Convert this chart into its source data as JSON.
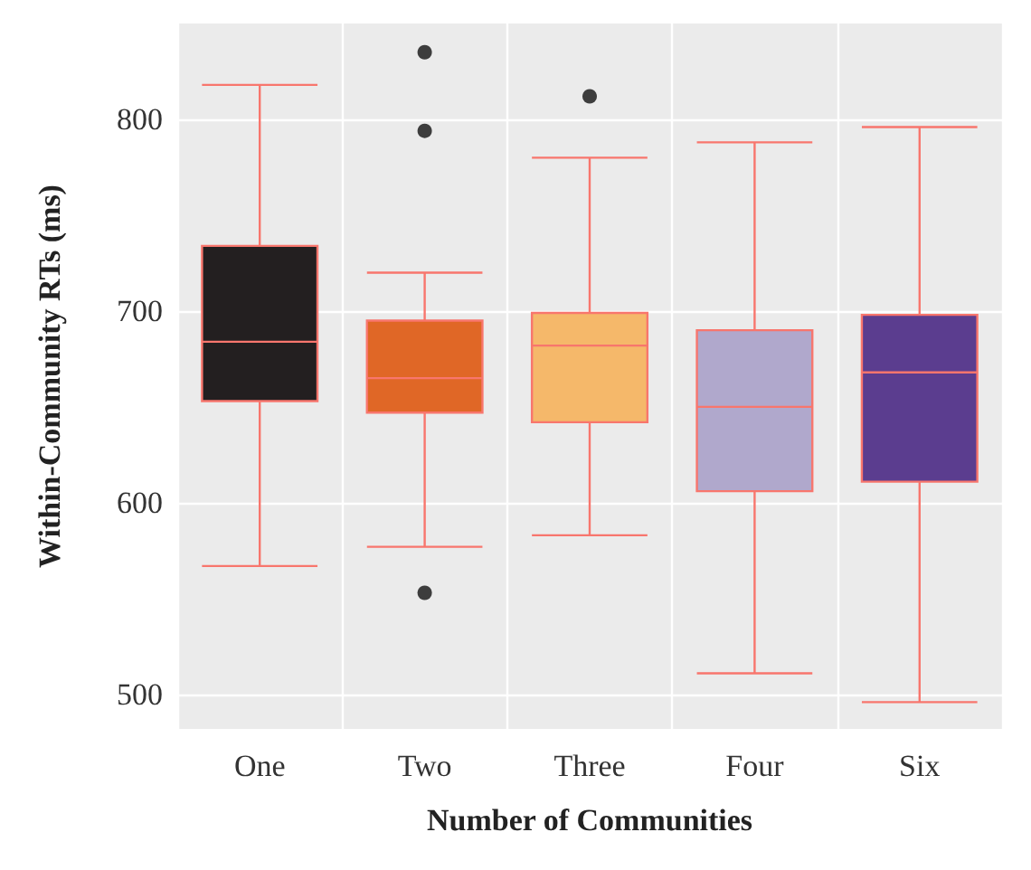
{
  "chart_data": {
    "type": "box",
    "xlabel": "Number of Communities",
    "ylabel": "Within-Community RTs (ms)",
    "categories": [
      "One",
      "Two",
      "Three",
      "Four",
      "Six"
    ],
    "ylim": [
      482,
      850
    ],
    "yticks": [
      500,
      600,
      700,
      800
    ],
    "grid": true,
    "series": [
      {
        "color": "#f8766d",
        "colors": [
          "#231f20",
          "#e06726",
          "#f5b86a",
          "#b0a8cc",
          "#5b3d8f"
        ],
        "boxes": [
          {
            "low": 567,
            "q1": 653,
            "median": 684,
            "q3": 734,
            "high": 818
          },
          {
            "low": 577,
            "q1": 647,
            "median": 665,
            "q3": 695,
            "high": 720,
            "outliers": [
              835,
              794,
              553
            ]
          },
          {
            "low": 583,
            "q1": 642,
            "median": 682,
            "q3": 699,
            "high": 780,
            "outliers": [
              812
            ]
          },
          {
            "low": 511,
            "q1": 606,
            "median": 650,
            "q3": 690,
            "high": 788
          },
          {
            "low": 496,
            "q1": 611,
            "median": 668,
            "q3": 698,
            "high": 796
          }
        ]
      }
    ]
  }
}
